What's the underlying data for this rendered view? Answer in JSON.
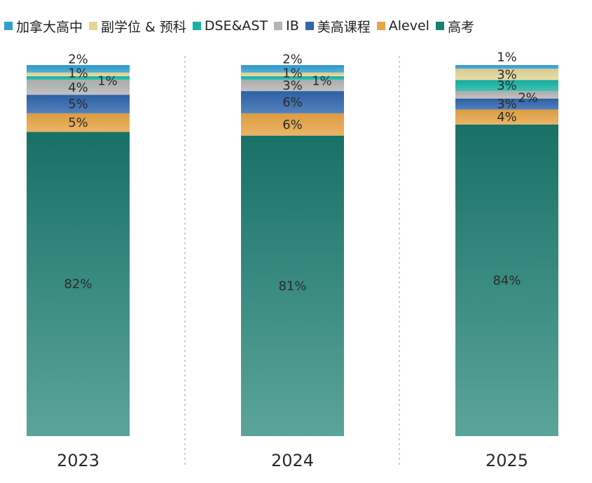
{
  "legend": [
    {
      "name": "加拿大高中",
      "color": "#2f9fd2"
    },
    {
      "name": "副学位 & 预科",
      "color": "#e3d594"
    },
    {
      "name": "DSE&AST",
      "color": "#17b3a4"
    },
    {
      "name": "IB",
      "color": "#b4b4b4"
    },
    {
      "name": "美高课程",
      "color": "#2f65ad"
    },
    {
      "name": "Alevel",
      "color": "#e6a445"
    },
    {
      "name": "高考",
      "color": "#1b8074"
    }
  ],
  "chart_data": {
    "type": "bar",
    "stacked": true,
    "categories": [
      "2023",
      "2024",
      "2025"
    ],
    "series": [
      {
        "name": "高考",
        "color": "#1b8074",
        "values": [
          82,
          81,
          84
        ],
        "labels": [
          "82%",
          "81%",
          "84%"
        ]
      },
      {
        "name": "Alevel",
        "color": "#e6a445",
        "values": [
          5,
          6,
          4
        ],
        "labels": [
          "5%",
          "6%",
          "4%"
        ]
      },
      {
        "name": "美高课程",
        "color": "#2f65ad",
        "values": [
          5,
          6,
          3
        ],
        "labels": [
          "5%",
          "6%",
          "3%"
        ]
      },
      {
        "name": "IB",
        "color": "#b4b4b4",
        "values": [
          4,
          3,
          2
        ],
        "labels": [
          "4%",
          "3%",
          "2%"
        ]
      },
      {
        "name": "DSE&AST",
        "color": "#17b3a4",
        "values": [
          1,
          1,
          3
        ],
        "labels": [
          "1%",
          "1%",
          "3%"
        ]
      },
      {
        "name": "副学位 & 预科",
        "color": "#e3d594",
        "values": [
          1,
          1,
          3
        ],
        "labels": [
          "1%",
          "1%",
          "3%"
        ]
      },
      {
        "name": "加拿大高中",
        "color": "#2f9fd2",
        "values": [
          2,
          2,
          1
        ],
        "labels": [
          "2%",
          "2%",
          "1%"
        ]
      }
    ],
    "ylim": [
      0,
      100
    ],
    "legend_position": "top",
    "grid": false
  }
}
